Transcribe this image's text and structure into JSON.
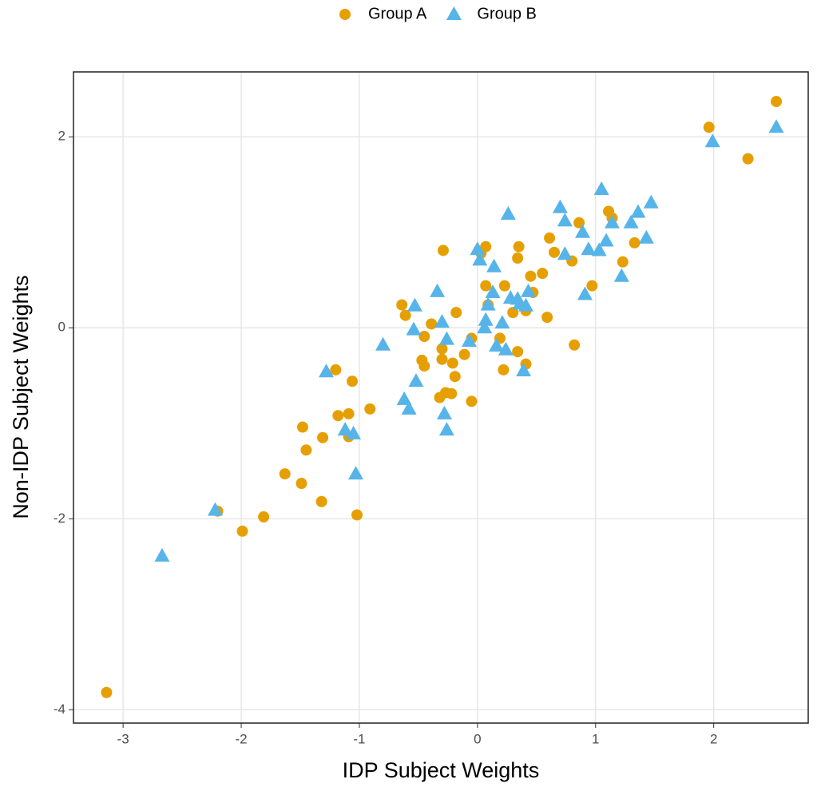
{
  "chart_data": {
    "type": "scatter",
    "x_label": "IDP Subject Weights",
    "y_label": "Non-IDP Subject Weights",
    "xlim": [
      -3.42,
      2.8
    ],
    "ylim": [
      -4.14,
      2.68
    ],
    "xticks": [
      -3,
      -2,
      -1,
      0,
      1,
      2
    ],
    "yticks": [
      -4,
      -2,
      0,
      2
    ],
    "grid": true,
    "legend_position": "top",
    "series": [
      {
        "name": "Group A",
        "color": "#E69F00",
        "marker": "circle",
        "x": [
          2.53,
          1.96,
          2.29,
          -3.14,
          1.11,
          1.14,
          0.86,
          0.61,
          1.33,
          0.07,
          0.03,
          0.35,
          -0.29,
          0.34,
          0.65,
          0.97,
          1.23,
          0.8,
          0.07,
          0.23,
          0.45,
          0.55,
          0.47,
          0.41,
          0.59,
          -0.64,
          -0.61,
          -0.18,
          -0.39,
          0.09,
          0.3,
          -0.45,
          -0.05,
          0.19,
          0.34,
          -0.47,
          -0.45,
          -0.3,
          -0.3,
          -0.21,
          -0.11,
          -0.19,
          0.22,
          0.41,
          0.82,
          -0.32,
          -0.27,
          -0.22,
          -0.05,
          -1.2,
          -1.06,
          -1.18,
          -1.09,
          -1.09,
          -0.91,
          -1.48,
          -1.31,
          -1.45,
          -1.63,
          -1.49,
          -1.32,
          -2.2,
          -1.99,
          -1.81,
          -1.02
        ],
        "values": [
          2.37,
          2.1,
          1.77,
          -3.82,
          1.22,
          1.15,
          1.1,
          0.94,
          0.89,
          0.85,
          0.78,
          0.85,
          0.81,
          0.73,
          0.79,
          0.44,
          0.69,
          0.7,
          0.44,
          0.44,
          0.54,
          0.57,
          0.37,
          0.18,
          0.11,
          0.24,
          0.13,
          0.16,
          0.04,
          0.24,
          0.16,
          -0.09,
          -0.11,
          -0.11,
          -0.25,
          -0.34,
          -0.4,
          -0.22,
          -0.33,
          -0.37,
          -0.28,
          -0.51,
          -0.44,
          -0.38,
          -0.18,
          -0.73,
          -0.68,
          -0.69,
          -0.77,
          -0.44,
          -0.56,
          -0.92,
          -0.9,
          -1.14,
          -0.85,
          -1.04,
          -1.15,
          -1.28,
          -1.53,
          -1.63,
          -1.82,
          -1.92,
          -2.13,
          -1.98,
          -1.96
        ]
      },
      {
        "name": "Group B",
        "color": "#56B4E9",
        "marker": "triangle",
        "x": [
          2.53,
          1.99,
          1.05,
          1.47,
          0.7,
          0.74,
          0.26,
          1.36,
          1.14,
          1.3,
          0.89,
          1.09,
          1.43,
          0.0,
          0.02,
          0.14,
          0.94,
          0.74,
          1.03,
          1.22,
          0.91,
          -0.34,
          -0.53,
          0.13,
          0.28,
          0.09,
          0.43,
          0.34,
          0.36,
          0.41,
          -0.54,
          -0.3,
          0.07,
          0.06,
          0.21,
          -0.26,
          -0.07,
          -0.8,
          0.16,
          0.24,
          0.39,
          -1.28,
          -0.52,
          -0.62,
          -0.58,
          -0.28,
          -0.26,
          -1.12,
          -1.05,
          -1.03,
          -2.22,
          -2.67
        ],
        "values": [
          2.1,
          1.95,
          1.45,
          1.31,
          1.26,
          1.12,
          1.19,
          1.21,
          1.1,
          1.1,
          1.0,
          0.91,
          0.94,
          0.82,
          0.71,
          0.64,
          0.82,
          0.77,
          0.81,
          0.54,
          0.35,
          0.38,
          0.23,
          0.37,
          0.31,
          0.24,
          0.38,
          0.3,
          0.25,
          0.23,
          -0.02,
          0.06,
          0.08,
          0.0,
          0.05,
          -0.12,
          -0.14,
          -0.18,
          -0.19,
          -0.23,
          -0.45,
          -0.46,
          -0.56,
          -0.75,
          -0.85,
          -0.9,
          -1.07,
          -1.07,
          -1.11,
          -1.53,
          -1.91,
          -2.39
        ]
      }
    ]
  }
}
